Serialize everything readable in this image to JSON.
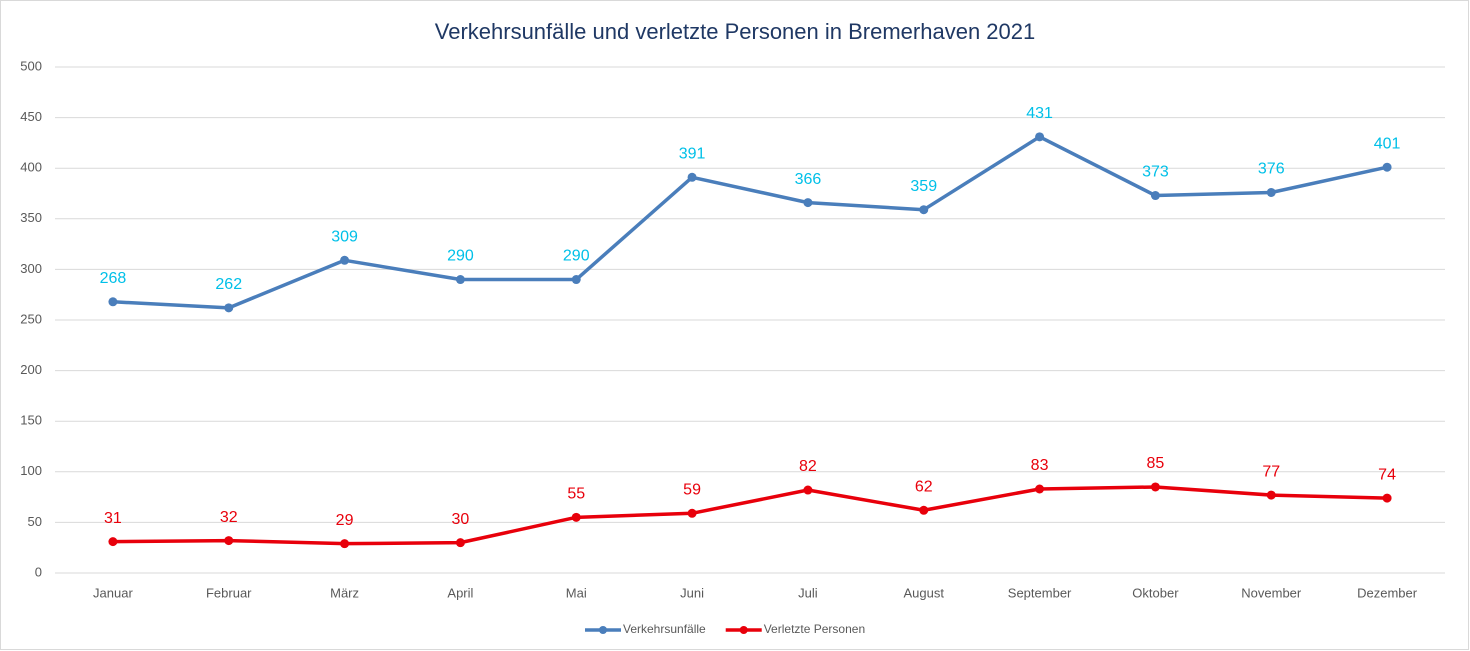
{
  "chart_data": {
    "type": "line",
    "title": "Verkehrsunfälle und verletzte Personen in Bremerhaven 2021",
    "categories": [
      "Januar",
      "Februar",
      "März",
      "April",
      "Mai",
      "Juni",
      "Juli",
      "August",
      "September",
      "Oktober",
      "November",
      "Dezember"
    ],
    "series": [
      {
        "name": "Verkehrsunfälle",
        "color": "#4a7ebb",
        "label_color": "#00c0e8",
        "values": [
          268,
          262,
          309,
          290,
          290,
          391,
          366,
          359,
          431,
          373,
          376,
          401
        ]
      },
      {
        "name": "Verletzte Personen",
        "color": "#e8000b",
        "label_color": "#e8000b",
        "values": [
          31,
          32,
          29,
          30,
          55,
          59,
          82,
          62,
          83,
          85,
          77,
          74
        ]
      }
    ],
    "ylim": [
      0,
      500
    ],
    "yticks": [
      0,
      50,
      100,
      150,
      200,
      250,
      300,
      350,
      400,
      450,
      500
    ],
    "grid": true,
    "legend": "bottom",
    "data_labels": true
  }
}
